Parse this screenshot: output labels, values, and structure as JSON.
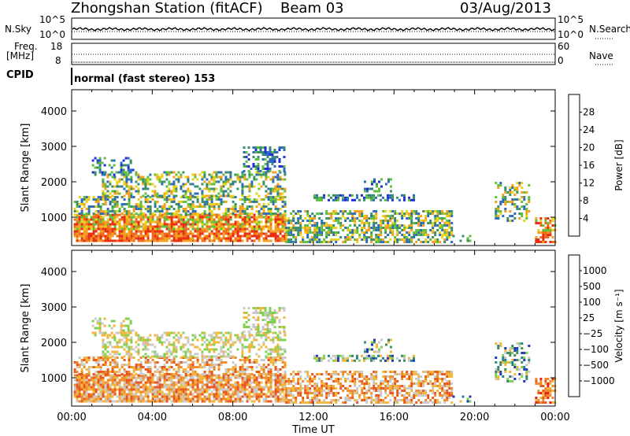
{
  "header": {
    "station_title": "Zhongshan Station (fitACF)",
    "beam_label": "Beam 03",
    "date_label": "03/Aug/2013"
  },
  "top_panels": {
    "nsky_label": "N.Sky",
    "nsky_ticks": [
      "10^5",
      "10^0"
    ],
    "nsearch_label": "N.Search",
    "nsearch_ticks": [
      "10^5",
      "10^0"
    ],
    "freq_label_line1": "Freq.",
    "freq_label_line2": "[MHz]",
    "freq_ticks": [
      "18",
      "8"
    ],
    "nave_label": "Nave",
    "nave_ticks": [
      "60",
      "0"
    ],
    "cpid_label": "CPID",
    "cpid_text": "normal (fast stereo) 153"
  },
  "colors": {
    "power_scale": [
      "#1f2fd6",
      "#2e6bb8",
      "#3a9066",
      "#5fbf3c",
      "#e8d21a",
      "#f3a11c",
      "#ee6a1a",
      "#e82a10"
    ],
    "velocity_scale": [
      "#1f3bb7",
      "#2b7f88",
      "#3f8f5a",
      "#7ed24e",
      "#c9c9c9",
      "#f2b63c",
      "#ee8a2a",
      "#e9561c",
      "#e21f15"
    ]
  },
  "chart_data": [
    {
      "type": "heatmap",
      "title": "",
      "xlabel": "",
      "ylabel": "Slant Range [km]",
      "xlim_hours": [
        0,
        24
      ],
      "ylim_km": [
        200,
        4600
      ],
      "yticks": [
        "4000",
        "3000",
        "2000",
        "1000"
      ],
      "colorbar": {
        "label": "Power [dB]",
        "ticks": [
          "28",
          "24",
          "20",
          "16",
          "12",
          "8",
          "4"
        ],
        "range": [
          0,
          32
        ]
      }
    },
    {
      "type": "heatmap",
      "title": "",
      "xlabel": "Time UT",
      "ylabel": "Slant Range [km]",
      "xlim_hours": [
        0,
        24
      ],
      "ylim_km": [
        200,
        4600
      ],
      "xticks": [
        "00:00",
        "04:00",
        "08:00",
        "12:00",
        "16:00",
        "20:00",
        "00:00"
      ],
      "yticks": [
        "4000",
        "3000",
        "2000",
        "1000"
      ],
      "colorbar": {
        "label": "Velocity [m s⁻¹]",
        "ticks": [
          "1000",
          "500",
          "100",
          "25",
          "−25",
          "−100",
          "−500",
          "−1000"
        ]
      }
    }
  ]
}
